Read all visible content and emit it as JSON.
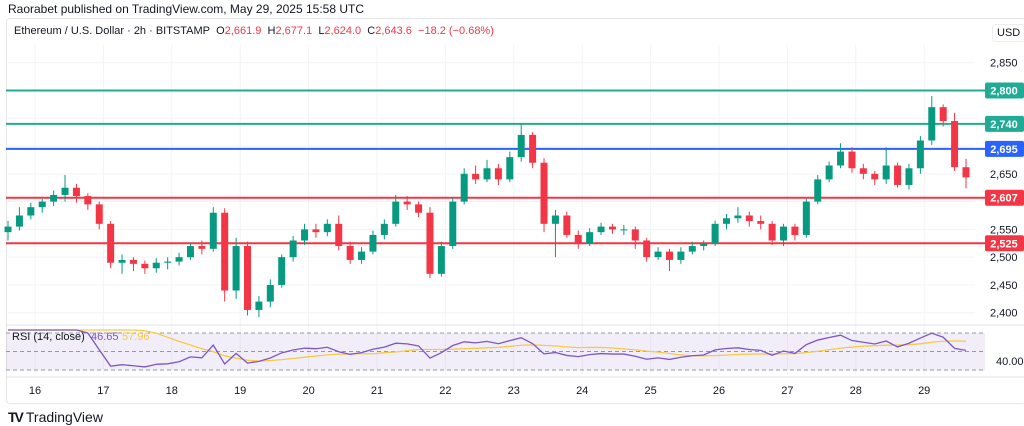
{
  "publisher_line": "Raorabet published on TradingView.com, May 29, 2025 15:58 UTC",
  "legend": {
    "symbol": "Ethereum / U.S. Dollar · 2h · BITSTAMP",
    "open_label": "O",
    "open": "2,661.9",
    "high_label": "H",
    "high": "2,677.1",
    "low_label": "L",
    "low": "2,624.0",
    "close_label": "C",
    "close": "2,643.6",
    "change": "−18.2 (−0.68%)"
  },
  "currency": "USD",
  "logo_text": "TradingView",
  "colors": {
    "up": "#089981",
    "down": "#f23645",
    "blue": "#2962ff",
    "rsi": "#7e57c2",
    "rsi_ma": "#f7c948"
  },
  "chart_data": {
    "type": "candlestick",
    "ylim": [
      2370,
      2880
    ],
    "y_ticks": [
      "2,400",
      "2,450",
      "2,500",
      "2,550",
      "2,650",
      "2,850"
    ],
    "y_tick_values": [
      2400,
      2450,
      2500,
      2550,
      2650,
      2850
    ],
    "x_ticks": [
      "16",
      "17",
      "18",
      "19",
      "20",
      "21",
      "22",
      "23",
      "24",
      "25",
      "26",
      "27",
      "28",
      "29"
    ],
    "horizontal_levels": [
      {
        "value": 2800,
        "label": "2,800",
        "color": "#22ab94"
      },
      {
        "value": 2740,
        "label": "2,740",
        "color": "#22ab94"
      },
      {
        "value": 2695,
        "label": "2,695",
        "color": "#2962ff"
      },
      {
        "value": 2607,
        "label": "2,607",
        "color": "#f23645"
      },
      {
        "value": 2525,
        "label": "2,525",
        "color": "#f23645"
      }
    ],
    "candles": [
      [
        2545,
        2565,
        2530,
        2555
      ],
      [
        2555,
        2590,
        2548,
        2575
      ],
      [
        2575,
        2598,
        2568,
        2590
      ],
      [
        2590,
        2605,
        2580,
        2600
      ],
      [
        2600,
        2620,
        2592,
        2612
      ],
      [
        2612,
        2648,
        2600,
        2625
      ],
      [
        2625,
        2632,
        2598,
        2610
      ],
      [
        2610,
        2615,
        2585,
        2595
      ],
      [
        2595,
        2600,
        2550,
        2560
      ],
      [
        2560,
        2565,
        2480,
        2490
      ],
      [
        2490,
        2505,
        2470,
        2495
      ],
      [
        2495,
        2500,
        2475,
        2488
      ],
      [
        2488,
        2494,
        2470,
        2480
      ],
      [
        2480,
        2498,
        2472,
        2490
      ],
      [
        2490,
        2500,
        2478,
        2492
      ],
      [
        2492,
        2508,
        2485,
        2500
      ],
      [
        2500,
        2525,
        2495,
        2520
      ],
      [
        2520,
        2530,
        2505,
        2515
      ],
      [
        2515,
        2590,
        2510,
        2580
      ],
      [
        2580,
        2588,
        2420,
        2440
      ],
      [
        2440,
        2535,
        2425,
        2520
      ],
      [
        2520,
        2528,
        2395,
        2405
      ],
      [
        2405,
        2430,
        2392,
        2420
      ],
      [
        2420,
        2460,
        2410,
        2450
      ],
      [
        2450,
        2505,
        2445,
        2500
      ],
      [
        2500,
        2538,
        2492,
        2530
      ],
      [
        2530,
        2560,
        2522,
        2550
      ],
      [
        2550,
        2560,
        2535,
        2545
      ],
      [
        2545,
        2568,
        2538,
        2560
      ],
      [
        2560,
        2575,
        2512,
        2520
      ],
      [
        2520,
        2528,
        2488,
        2495
      ],
      [
        2495,
        2518,
        2488,
        2510
      ],
      [
        2510,
        2548,
        2505,
        2540
      ],
      [
        2540,
        2568,
        2532,
        2560
      ],
      [
        2560,
        2612,
        2555,
        2600
      ],
      [
        2600,
        2610,
        2585,
        2595
      ],
      [
        2595,
        2600,
        2572,
        2580
      ],
      [
        2580,
        2590,
        2462,
        2470
      ],
      [
        2470,
        2528,
        2465,
        2520
      ],
      [
        2520,
        2608,
        2515,
        2600
      ],
      [
        2600,
        2660,
        2595,
        2650
      ],
      [
        2650,
        2665,
        2632,
        2640
      ],
      [
        2640,
        2675,
        2635,
        2660
      ],
      [
        2660,
        2668,
        2630,
        2640
      ],
      [
        2640,
        2690,
        2635,
        2680
      ],
      [
        2680,
        2740,
        2672,
        2720
      ],
      [
        2720,
        2725,
        2660,
        2670
      ],
      [
        2670,
        2678,
        2545,
        2560
      ],
      [
        2560,
        2585,
        2500,
        2575
      ],
      [
        2575,
        2582,
        2535,
        2540
      ],
      [
        2540,
        2548,
        2515,
        2525
      ],
      [
        2525,
        2552,
        2520,
        2545
      ],
      [
        2545,
        2562,
        2540,
        2555
      ],
      [
        2555,
        2560,
        2542,
        2550
      ],
      [
        2550,
        2558,
        2540,
        2550
      ],
      [
        2550,
        2555,
        2515,
        2530
      ],
      [
        2530,
        2535,
        2492,
        2500
      ],
      [
        2500,
        2518,
        2495,
        2510
      ],
      [
        2510,
        2515,
        2475,
        2495
      ],
      [
        2495,
        2518,
        2488,
        2510
      ],
      [
        2510,
        2528,
        2505,
        2520
      ],
      [
        2520,
        2530,
        2512,
        2525
      ],
      [
        2525,
        2566,
        2520,
        2560
      ],
      [
        2560,
        2578,
        2550,
        2570
      ],
      [
        2570,
        2590,
        2562,
        2575
      ],
      [
        2575,
        2582,
        2555,
        2565
      ],
      [
        2565,
        2575,
        2550,
        2560
      ],
      [
        2560,
        2565,
        2522,
        2530
      ],
      [
        2530,
        2560,
        2520,
        2555
      ],
      [
        2555,
        2560,
        2530,
        2540
      ],
      [
        2540,
        2605,
        2535,
        2600
      ],
      [
        2600,
        2648,
        2595,
        2640
      ],
      [
        2640,
        2672,
        2635,
        2665
      ],
      [
        2665,
        2705,
        2660,
        2690
      ],
      [
        2690,
        2698,
        2652,
        2660
      ],
      [
        2660,
        2668,
        2640,
        2650
      ],
      [
        2650,
        2655,
        2630,
        2640
      ],
      [
        2640,
        2698,
        2632,
        2665
      ],
      [
        2665,
        2670,
        2625,
        2630
      ],
      [
        2630,
        2668,
        2622,
        2660
      ],
      [
        2660,
        2718,
        2650,
        2710
      ],
      [
        2710,
        2790,
        2702,
        2770
      ],
      [
        2770,
        2775,
        2735,
        2745
      ],
      [
        2745,
        2760,
        2655,
        2661.9
      ],
      [
        2661.9,
        2677.1,
        2624.0,
        2643.6
      ]
    ],
    "rsi": {
      "label": "RSI (14, close)",
      "value": "46.65",
      "ma_value": "57.96",
      "axis_label": "40.00",
      "period": 14,
      "bands": [
        70,
        50,
        30
      ]
    }
  }
}
